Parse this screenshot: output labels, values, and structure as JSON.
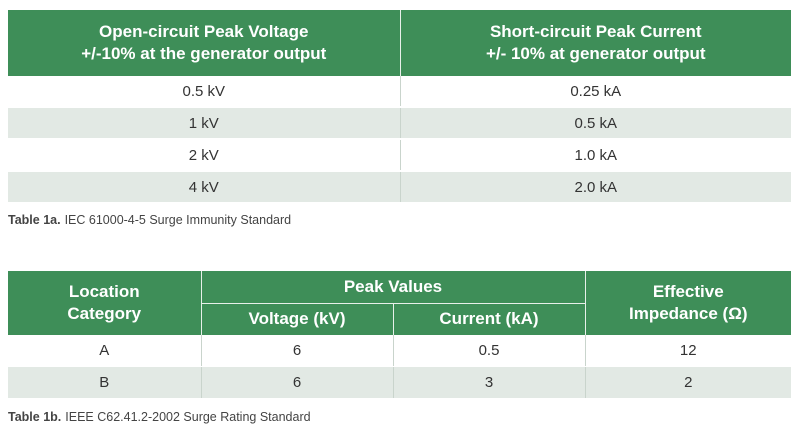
{
  "table1": {
    "headers": [
      [
        "Open-circuit Peak Voltage",
        "+/-10% at the generator output"
      ],
      [
        "Short-circuit Peak Current",
        "+/- 10% at generator output"
      ]
    ],
    "rows": [
      [
        "0.5 kV",
        "0.25 kA"
      ],
      [
        "1 kV",
        "0.5 kA"
      ],
      [
        "2 kV",
        "1.0 kA"
      ],
      [
        "4 kV",
        "2.0 kA"
      ]
    ],
    "caption_label": "Table 1a.",
    "caption_text": "IEC 61000-4-5 Surge Immunity Standard"
  },
  "table2": {
    "header_location": [
      "Location",
      "Category"
    ],
    "header_peak": "Peak Values",
    "header_voltage": "Voltage (kV)",
    "header_current": "Current (kA)",
    "header_impedance": [
      "Effective",
      "Impedance (Ω)"
    ],
    "rows": [
      [
        "A",
        "6",
        "0.5",
        "12"
      ],
      [
        "B",
        "6",
        "3",
        "2"
      ]
    ],
    "caption_label": "Table 1b.",
    "caption_text": "IEEE C62.41.2-2002 Surge Rating Standard"
  },
  "colors": {
    "header_green": "#3e8e58",
    "row_alt": "#e2e9e4"
  }
}
